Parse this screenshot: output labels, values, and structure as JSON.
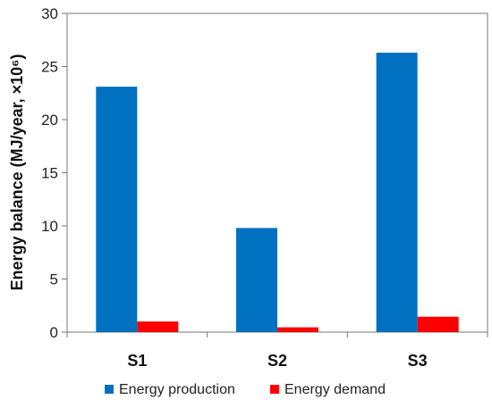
{
  "chart_data": {
    "type": "bar",
    "ylabel": "Energy balance (MJ/year, ×10⁶)",
    "xlabel": "",
    "ylim": [
      0,
      30
    ],
    "yticks": [
      "0",
      "5",
      "10",
      "15",
      "20",
      "25",
      "30"
    ],
    "categories": [
      "S1",
      "S2",
      "S3"
    ],
    "series": [
      {
        "name": "Energy production",
        "color": "#0070C0",
        "values": [
          23.1,
          9.8,
          26.3
        ]
      },
      {
        "name": "Energy demand",
        "color": "#FF0000",
        "values": [
          1.0,
          0.45,
          1.45
        ]
      }
    ],
    "grid": false,
    "legend": "bottom"
  }
}
